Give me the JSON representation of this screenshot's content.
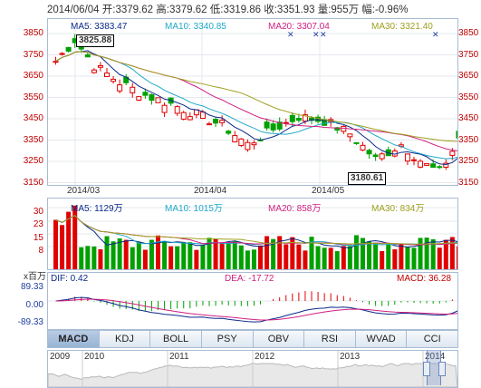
{
  "header": {
    "date": "2014/06/04",
    "open_label": "开:",
    "open": "3379.62",
    "high_label": "高:",
    "high": "3379.62",
    "low_label": "低:",
    "low": "3319.86",
    "close_label": "收:",
    "close": "3351.93",
    "vol_label": "量:",
    "vol": "955万",
    "chg_label": "幅:",
    "chg": "-0.96%"
  },
  "price": {
    "ma5": "MA5: 3383.47",
    "ma10": "MA10: 3340.85",
    "ma20": "MA20: 3307.04",
    "ma30": "MA30: 3321.40",
    "ticks": [
      "3850",
      "3750",
      "3650",
      "3550",
      "3450",
      "3350",
      "3250",
      "3150"
    ],
    "high_box": "3825.88",
    "low_box": "3180.61",
    "dates": [
      "2014/03",
      "2014/04",
      "2014/05"
    ]
  },
  "volume": {
    "ma5": "MA5: 1129万",
    "ma10": "MA10: 1015万",
    "ma20": "MA20: 858万",
    "ma30": "MA30: 834万",
    "ticks": [
      "30",
      "23",
      "15",
      "8"
    ],
    "unit": "x百万"
  },
  "macd": {
    "dif": "DIF: 0.42",
    "dea": "DEA: -17.72",
    "macd": "MACD: 36.28",
    "ticks": [
      "89.33",
      "0.00",
      "-89.33"
    ]
  },
  "tabs": [
    "MACD",
    "KDJ",
    "BOLL",
    "PSY",
    "OBV",
    "RSI",
    "WVAD",
    "CCI"
  ],
  "active_tab": "MACD",
  "nav": {
    "years": [
      "2009",
      "2010",
      "2011",
      "2012",
      "2013",
      "2014"
    ]
  },
  "colors": {
    "up": "#e00000",
    "down": "#00a000",
    "ma5": "#0a2a8a",
    "ma10": "#20a8c8",
    "ma20": "#d02080",
    "ma30": "#a0a020"
  }
}
